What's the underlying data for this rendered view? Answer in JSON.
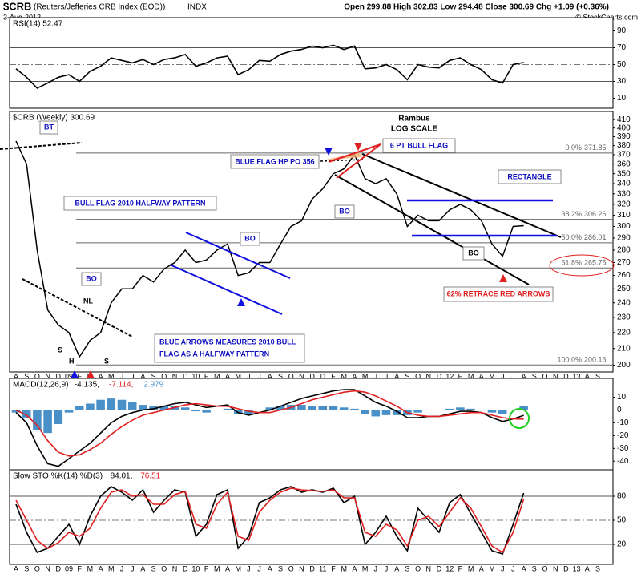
{
  "header": {
    "symbol": "$CRB",
    "name": "(Reuters/Jefferies CRB Index (EOD))",
    "exchange": "INDX",
    "date": "3-Aug-2012",
    "quote": "Open 299.88 High 302.83 Low 294.48 Close 300.69 Chg +1.09 (+0.36%)",
    "credit": "© StockCharts.com"
  },
  "chart_data": [
    {
      "type": "line",
      "title": "RSI(14) 52.47",
      "color": "#000000",
      "values": [
        45,
        35,
        22,
        28,
        35,
        38,
        30,
        42,
        48,
        58,
        55,
        52,
        56,
        50,
        56,
        58,
        62,
        48,
        52,
        58,
        60,
        38,
        44,
        55,
        54,
        62,
        66,
        68,
        72,
        70,
        73,
        68,
        72,
        45,
        46,
        50,
        44,
        32,
        50,
        47,
        46,
        55,
        58,
        50,
        44,
        32,
        28,
        50,
        52.47
      ],
      "ylim": [
        0,
        100
      ],
      "yticks": [
        10,
        30,
        50,
        70,
        90
      ],
      "bands": [
        70,
        50,
        30
      ]
    },
    {
      "type": "line",
      "title": "$CRB (Weekly) 300.69",
      "scale": "log",
      "color": "#000000",
      "categories": [
        "A",
        "S",
        "O",
        "N",
        "D",
        "09",
        "F",
        "M",
        "A",
        "M",
        "J",
        "J",
        "A",
        "S",
        "O",
        "N",
        "D",
        "10",
        "F",
        "M",
        "A",
        "M",
        "J",
        "J",
        "A",
        "S",
        "O",
        "N",
        "D",
        "11",
        "F",
        "M",
        "A",
        "M",
        "J",
        "J",
        "A",
        "S",
        "O",
        "N",
        "D",
        "12",
        "F",
        "M",
        "A",
        "M",
        "J",
        "J",
        "A",
        "S",
        "O",
        "N",
        "D",
        "13",
        "A",
        "S"
      ],
      "values": [
        385,
        360,
        280,
        235,
        225,
        220,
        205,
        215,
        220,
        240,
        250,
        250,
        260,
        255,
        265,
        270,
        280,
        270,
        272,
        280,
        285,
        260,
        262,
        270,
        270,
        285,
        300,
        305,
        325,
        335,
        350,
        355,
        370,
        345,
        340,
        345,
        330,
        300,
        310,
        305,
        305,
        315,
        320,
        315,
        305,
        285,
        275,
        300,
        300.69,
        null,
        null,
        null,
        null,
        null,
        null,
        null
      ],
      "ylim": [
        197,
        414
      ],
      "yticks": [
        200,
        210,
        220,
        230,
        240,
        250,
        260,
        270,
        280,
        290,
        300,
        310,
        320,
        330,
        340,
        350,
        360,
        370,
        380,
        390,
        400,
        410
      ],
      "fib_levels": [
        {
          "label": "0.0%",
          "value": 371.85
        },
        {
          "label": "38.2%",
          "value": 306.26
        },
        {
          "label": "50.0%",
          "value": 286.01
        },
        {
          "label": "61.8%",
          "value": 265.75
        },
        {
          "label": "100.0%",
          "value": 200.16
        }
      ],
      "annotations": [
        "Rambus",
        "LOG SCALE",
        "BT",
        "BO",
        "BO",
        "BO",
        "BO",
        "NL",
        "S",
        "H",
        "S",
        "BULL FLAG 2010 HALFWAY PATTERN",
        "BLUE FLAG HP PO 356",
        "6 PT BULL FLAG",
        "RECTANGLE",
        "62% RETRACE RED ARROWS",
        "BLUE ARROWS MEASURES 2010 BULL",
        "FLAG AS A HALFWAY PATTERN"
      ]
    },
    {
      "type": "macd",
      "title": "MACD(12,26,9)",
      "legend_values": [
        "-4.135,",
        "-7.114,",
        "2.979"
      ],
      "series": [
        {
          "color": "#000000",
          "values": [
            -2,
            -10,
            -28,
            -42,
            -44,
            -38,
            -32,
            -26,
            -18,
            -10,
            -5,
            -2,
            0,
            1,
            3,
            5,
            6,
            4,
            2,
            3,
            4,
            -2,
            -4,
            -2,
            0,
            3,
            6,
            9,
            11,
            13,
            15,
            16,
            16,
            11,
            6,
            3,
            -1,
            -6,
            -6,
            -5,
            -5,
            -3,
            -1,
            -1,
            -2,
            -6,
            -9,
            -7,
            -4.135
          ]
        },
        {
          "color": "#e02020",
          "values": [
            0,
            -4,
            -12,
            -24,
            -33,
            -36,
            -35,
            -31,
            -26,
            -19,
            -13,
            -8,
            -4,
            -2,
            0,
            2,
            4,
            5,
            4,
            3,
            3,
            1,
            -1,
            -2,
            -2,
            0,
            2,
            5,
            8,
            10,
            12,
            14,
            15,
            14,
            11,
            7,
            3,
            -2,
            -4,
            -5,
            -5,
            -4,
            -3,
            -2,
            -2,
            -4,
            -6,
            -7,
            -7.114
          ]
        },
        {
          "color": "#4a90c8",
          "style": "bar",
          "values": [
            -2,
            -6,
            -16,
            -18,
            -11,
            -2,
            3,
            5,
            8,
            9,
            8,
            6,
            4,
            3,
            3,
            3,
            2,
            -1,
            -2,
            0,
            1,
            -3,
            -3,
            0,
            2,
            3,
            4,
            4,
            3,
            3,
            3,
            2,
            1,
            -3,
            -5,
            -4,
            -4,
            -4,
            -2,
            0,
            0,
            1,
            2,
            1,
            0,
            -2,
            -3,
            0,
            2.979
          ]
        }
      ],
      "ylim": [
        -48,
        21
      ],
      "yticks": [
        10,
        0,
        -10,
        -20,
        -30,
        -40
      ]
    },
    {
      "type": "line",
      "title": "Slow STO %K(14) %D(3)",
      "legend_values": [
        "84.01,",
        "76.51"
      ],
      "categories": [
        "A",
        "S",
        "O",
        "N",
        "D",
        "09",
        "F",
        "M",
        "A",
        "M",
        "J",
        "J",
        "A",
        "S",
        "O",
        "N",
        "D",
        "10",
        "F",
        "M",
        "A",
        "M",
        "J",
        "J",
        "A",
        "S",
        "O",
        "N",
        "D",
        "11",
        "F",
        "M",
        "A",
        "M",
        "J",
        "J",
        "A",
        "S",
        "O",
        "N",
        "D",
        "12",
        "F",
        "M",
        "A",
        "M",
        "J",
        "J",
        "A",
        "S",
        "O",
        "N",
        "D",
        "13",
        "A",
        "S"
      ],
      "series": [
        {
          "color": "#000000",
          "values": [
            70,
            35,
            10,
            15,
            30,
            45,
            20,
            55,
            80,
            92,
            85,
            75,
            88,
            60,
            75,
            88,
            85,
            30,
            45,
            82,
            88,
            15,
            30,
            72,
            78,
            88,
            92,
            85,
            88,
            85,
            90,
            72,
            80,
            20,
            35,
            55,
            30,
            12,
            65,
            50,
            35,
            72,
            82,
            58,
            35,
            12,
            8,
            45,
            84.01,
            null,
            null,
            null,
            null,
            null,
            null,
            null
          ]
        },
        {
          "color": "#e02020",
          "values": [
            75,
            50,
            25,
            15,
            22,
            35,
            30,
            40,
            65,
            85,
            88,
            80,
            82,
            70,
            70,
            82,
            86,
            45,
            40,
            70,
            85,
            30,
            25,
            60,
            75,
            85,
            90,
            88,
            87,
            86,
            88,
            78,
            78,
            35,
            30,
            45,
            38,
            18,
            50,
            55,
            42,
            60,
            78,
            65,
            42,
            18,
            10,
            35,
            76.51,
            null,
            null,
            null,
            null,
            null,
            null,
            null
          ]
        }
      ],
      "ylim": [
        -3,
        107
      ],
      "yticks": [
        80,
        50,
        20
      ],
      "bands": [
        80,
        50,
        20
      ]
    }
  ]
}
